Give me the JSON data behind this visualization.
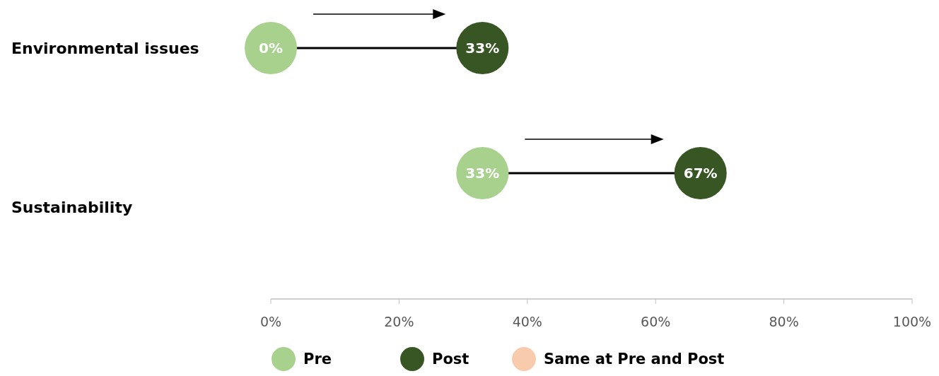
{
  "chart_data": {
    "type": "scatter",
    "orientation": "horizontal",
    "categories": [
      "Environmental issues",
      "Sustainability"
    ],
    "series": [
      {
        "name": "Pre",
        "color": "#a9d18e",
        "values": [
          0,
          33
        ],
        "value_labels": [
          "0%",
          "33%"
        ]
      },
      {
        "name": "Post",
        "color": "#375623",
        "values": [
          33,
          67
        ],
        "value_labels": [
          "33%",
          "67%"
        ]
      },
      {
        "name": "Same at Pre and Post",
        "color": "#f8cbad",
        "values": [
          null,
          null
        ]
      }
    ],
    "xlim": [
      0,
      100
    ],
    "xticks": [
      {
        "value": 0,
        "label": "0%"
      },
      {
        "value": 20,
        "label": "20%"
      },
      {
        "value": 40,
        "label": "40%"
      },
      {
        "value": 60,
        "label": "60%"
      },
      {
        "value": 80,
        "label": "80%"
      },
      {
        "value": 100,
        "label": "100%"
      }
    ],
    "marker": "circle",
    "grid": false,
    "legend": "bottom"
  }
}
